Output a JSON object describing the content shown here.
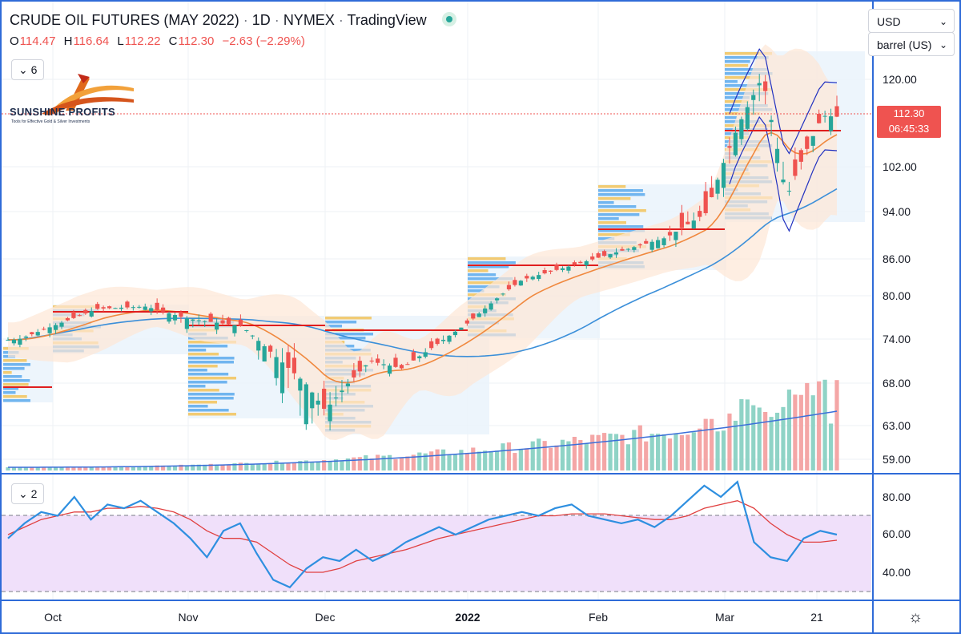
{
  "header": {
    "title": "CRUDE OIL FUTURES (MAY 2022)",
    "interval": "1D",
    "exchange": "NYMEX",
    "source": "TradingView",
    "separator": "·",
    "ohlc": {
      "o_label": "O",
      "o": "114.47",
      "h_label": "H",
      "h": "116.64",
      "l_label": "L",
      "l": "112.22",
      "c_label": "C",
      "c": "112.30",
      "change": "−2.63 (−2.29%)"
    }
  },
  "panes": {
    "main_indicators_toggle": "6",
    "rsi_indicators_toggle": "2"
  },
  "logo": {
    "name": "SUNSHINE PROFITS",
    "tagline": "Tools for Effective Gold & Silver Investments"
  },
  "right_toolbar": {
    "currency": "USD",
    "unit": "barrel (US)"
  },
  "last_price": {
    "value": "112.30",
    "countdown": "06:45:33"
  },
  "colors": {
    "up": "#26a69a",
    "down": "#ef5350",
    "ema_fast": "#f0883e",
    "sma_slow": "#3b8fd9",
    "rsi": "#2e8fe0",
    "rsi_signal": "#e04040",
    "rsi_band": "#f0e0fa",
    "frame": "#2f6bd8"
  },
  "chart_data": [
    {
      "type": "candlestick",
      "title": "CRUDE OIL FUTURES (MAY 2022)",
      "y_axis_labels": [
        "120.00",
        "102.00",
        "94.00",
        "86.00",
        "80.00",
        "74.00",
        "68.00",
        "63.00",
        "59.00"
      ],
      "y_axis_values": [
        120,
        102,
        94,
        86,
        80,
        74,
        68,
        63,
        59
      ],
      "x_axis_labels": [
        "Oct",
        "Nov",
        "Dec",
        "2022",
        "Feb",
        "Mar",
        "21"
      ],
      "last_close": 112.3,
      "ohlc_anchors": [
        {
          "label": "Oct",
          "o": 73.0,
          "h": 74.3,
          "l": 72.6,
          "c": 73.9
        },
        {
          "label": "mid-Oct",
          "o": 77.6,
          "h": 78.6,
          "l": 77.0,
          "c": 78.2
        },
        {
          "label": "late-Oct",
          "o": 78.8,
          "h": 79.6,
          "l": 78.0,
          "c": 78.5
        },
        {
          "label": "Nov",
          "o": 78.2,
          "h": 78.9,
          "l": 76.2,
          "c": 76.8
        },
        {
          "label": "mid-Nov",
          "o": 77.0,
          "h": 77.6,
          "l": 75.2,
          "c": 75.8
        },
        {
          "label": "late-Nov",
          "o": 76.8,
          "h": 77.3,
          "l": 67.0,
          "c": 67.9
        },
        {
          "label": "Dec",
          "o": 67.5,
          "h": 68.6,
          "l": 63.6,
          "c": 64.8
        },
        {
          "label": "mid-Dec",
          "o": 71.5,
          "h": 72.2,
          "l": 70.2,
          "c": 71.0
        },
        {
          "label": "late-Dec",
          "o": 69.5,
          "h": 70.6,
          "l": 68.2,
          "c": 70.0
        },
        {
          "label": "2022",
          "o": 75.5,
          "h": 76.6,
          "l": 75.0,
          "c": 76.2
        },
        {
          "label": "mid-Jan",
          "o": 82.0,
          "h": 83.0,
          "l": 81.3,
          "c": 82.6
        },
        {
          "label": "late-Jan",
          "o": 84.8,
          "h": 85.8,
          "l": 84.2,
          "c": 85.2
        },
        {
          "label": "Feb",
          "o": 86.8,
          "h": 88.2,
          "l": 86.0,
          "c": 87.6
        },
        {
          "label": "mid-Feb",
          "o": 90.5,
          "h": 91.8,
          "l": 89.2,
          "c": 89.6
        },
        {
          "label": "late-Feb",
          "o": 90.8,
          "h": 98.0,
          "l": 90.0,
          "c": 93.8
        },
        {
          "label": "Mar",
          "o": 103.0,
          "h": 112.0,
          "l": 101.5,
          "c": 110.5
        },
        {
          "label": "Mar-peak",
          "o": 118.0,
          "h": 124.5,
          "l": 114.0,
          "c": 120.5
        },
        {
          "label": "mid-Mar",
          "o": 104.0,
          "h": 106.0,
          "l": 95.0,
          "c": 96.5
        },
        {
          "label": "21",
          "o": 108.5,
          "h": 114.5,
          "l": 107.0,
          "c": 112.5
        },
        {
          "label": "last",
          "o": 114.47,
          "h": 116.64,
          "l": 112.22,
          "c": 112.3
        }
      ]
    },
    {
      "type": "line",
      "title": "RSI",
      "y_axis_labels": [
        "80.00",
        "60.00",
        "40.00"
      ],
      "y_axis_values": [
        80,
        60,
        40
      ],
      "bands": [
        30,
        70
      ],
      "series": [
        {
          "values": [
            58,
            66,
            72,
            70,
            80,
            68,
            76,
            74,
            78,
            72,
            66,
            58,
            48,
            62,
            66,
            50,
            36,
            32,
            42,
            48,
            46,
            52,
            46,
            50,
            56,
            60,
            64,
            60,
            64,
            68,
            70,
            72,
            70,
            74,
            76,
            70,
            68,
            66,
            68,
            64,
            70,
            78,
            86,
            80,
            88,
            56,
            48,
            46,
            58,
            62,
            60
          ]
        },
        {
          "values": [
            60,
            64,
            68,
            70,
            72,
            72,
            74,
            74,
            75,
            74,
            72,
            68,
            62,
            58,
            58,
            56,
            50,
            44,
            40,
            40,
            42,
            46,
            48,
            50,
            52,
            55,
            58,
            60,
            62,
            64,
            66,
            68,
            70,
            70,
            71,
            71,
            71,
            70,
            69,
            68,
            68,
            70,
            74,
            76,
            78,
            74,
            66,
            60,
            56,
            56,
            57
          ]
        }
      ]
    }
  ]
}
